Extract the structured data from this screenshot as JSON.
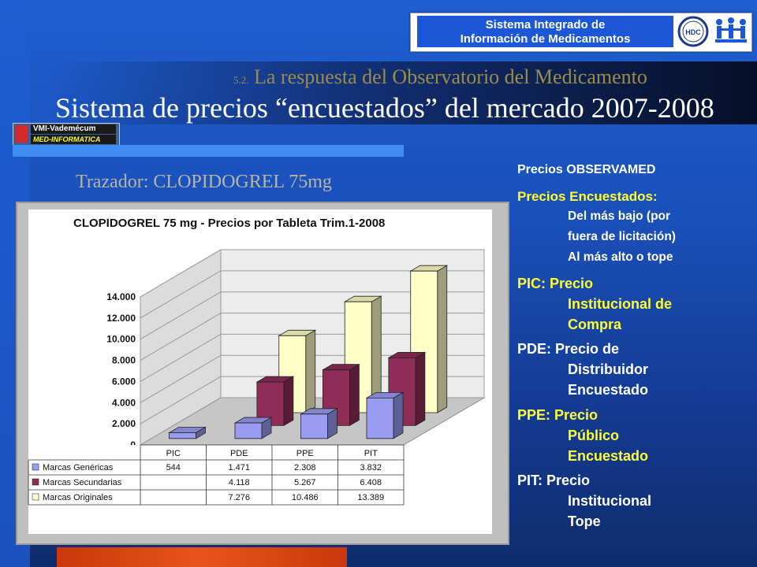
{
  "header": {
    "logo_line1": "Sistema Integrado de",
    "logo_line2": "Información de Medicamentos",
    "emblem_label": "HDC"
  },
  "subtitle_num": "5.2.",
  "subtitle": "La respuesta del Observatorio del Medicamento",
  "title": "Sistema de precios “encuestados” del mercado 2007-2008",
  "vmi_logo": {
    "line1": "VMI-Vademécum",
    "line2": "MED-INFORMATICA"
  },
  "trazador": "Trazador: CLOPIDOGREL 75mg",
  "legend_panel": {
    "l1": "Precios OBSERVAMED",
    "l2": "Precios Encuestados:",
    "l3": "Del más bajo (por",
    "l4": "fuera de licitación)",
    "l5": "Al más alto o tope",
    "pic1": "PIC:  Precio",
    "pic2": "Institucional de",
    "pic3": "Compra",
    "pde1": "PDE: Precio de",
    "pde2": "Distribuidor",
    "pde3": "Encuestado",
    "ppe1": "PPE: Precio",
    "ppe2": "Público",
    "ppe3": "Encuestado",
    "pit1": "PIT:  Precio",
    "pit2": "Institucional",
    "pit3": "Tope"
  },
  "colors": {
    "genericas": "#9a9cf2",
    "secundarias": "#8e2d57",
    "originales": "#ffffc8"
  },
  "chart_data": {
    "type": "bar",
    "title": "CLOPIDOGREL 75 mg - Precios por Tableta Trim.1-2008",
    "categories": [
      "PIC",
      "PDE",
      "PPE",
      "PIT"
    ],
    "ylim": [
      0,
      14000
    ],
    "yticks": [
      "0",
      "2.000",
      "4.000",
      "6.000",
      "8.000",
      "10.000",
      "12.000",
      "14.000"
    ],
    "series": [
      {
        "name": "Marcas Genéricas",
        "values": [
          544,
          1471,
          2308,
          3832
        ],
        "labels": [
          "544",
          "1.471",
          "2.308",
          "3.832"
        ]
      },
      {
        "name": "Marcas Secundarias",
        "values": [
          null,
          4118,
          5267,
          6408
        ],
        "labels": [
          "",
          "4.118",
          "5.267",
          "6.408"
        ]
      },
      {
        "name": "Marcas Originales",
        "values": [
          null,
          7276,
          10486,
          13389
        ],
        "labels": [
          "",
          "7.276",
          "10.486",
          "13.389"
        ]
      }
    ],
    "grid": true,
    "legend": "table-left"
  }
}
